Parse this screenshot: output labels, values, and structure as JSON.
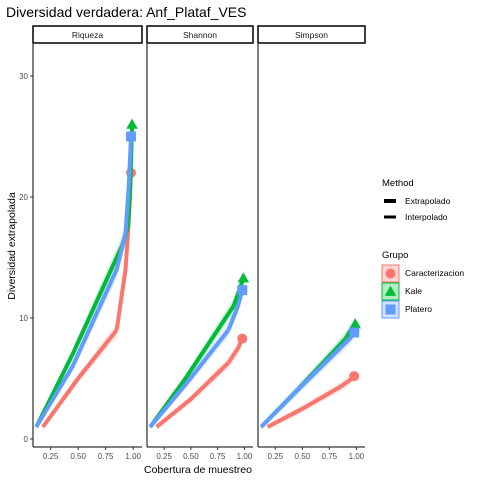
{
  "chart_data": {
    "type": "line",
    "title": "Diversidad verdadera: Anf_Plataf_VES",
    "xlabel": "Cobertura de muestreo",
    "ylabel": "Diversidad extrapolada",
    "ylim": [
      0,
      30
    ],
    "y_ticks": [
      0,
      10,
      20,
      30
    ],
    "x_ticks": [
      0.25,
      0.5,
      0.75,
      1.0
    ],
    "x_tick_labels": [
      "0.25",
      "0.50",
      "0.75",
      "1.00"
    ],
    "grid": false,
    "facets": [
      {
        "name": "Riqueza",
        "xlim": [
          0.09,
          1.08
        ],
        "series": [
          {
            "name": "Caracterizacion",
            "color": "#F8766D",
            "shape": "circle",
            "interpolado": [
              [
                0.18,
                1
              ],
              [
                0.5,
                5
              ],
              [
                0.85,
                9
              ]
            ],
            "extrapolado": [
              [
                0.85,
                9
              ],
              [
                0.93,
                14
              ],
              [
                0.96,
                18
              ],
              [
                0.98,
                22
              ]
            ],
            "observed": [
              0.98,
              22
            ]
          },
          {
            "name": "Kale",
            "color": "#00BA38",
            "shape": "triangle",
            "interpolado": [
              [
                0.12,
                1
              ],
              [
                0.45,
                7
              ],
              [
                0.9,
                16
              ]
            ],
            "extrapolado": [
              [
                0.9,
                16
              ],
              [
                0.95,
                17.5
              ],
              [
                0.97,
                20
              ],
              [
                0.99,
                26
              ]
            ],
            "observed": [
              0.99,
              26
            ]
          },
          {
            "name": "Platero",
            "color": "#619CFF",
            "shape": "square",
            "interpolado": [
              [
                0.12,
                1
              ],
              [
                0.45,
                6
              ],
              [
                0.85,
                14
              ]
            ],
            "extrapolado": [
              [
                0.85,
                14
              ],
              [
                0.93,
                17
              ],
              [
                0.96,
                21
              ],
              [
                0.98,
                25
              ]
            ],
            "observed": [
              0.98,
              25
            ]
          }
        ]
      },
      {
        "name": "Shannon",
        "xlim": [
          0.09,
          1.08
        ],
        "series": [
          {
            "name": "Caracterizacion",
            "color": "#F8766D",
            "shape": "circle",
            "interpolado": [
              [
                0.18,
                1
              ],
              [
                0.5,
                3.3
              ],
              [
                0.85,
                6.3
              ]
            ],
            "extrapolado": [
              [
                0.85,
                6.3
              ],
              [
                0.94,
                7.5
              ],
              [
                0.98,
                8.3
              ]
            ],
            "observed": [
              0.98,
              8.3
            ]
          },
          {
            "name": "Kale",
            "color": "#00BA38",
            "shape": "triangle",
            "interpolado": [
              [
                0.12,
                1
              ],
              [
                0.45,
                5
              ],
              [
                0.9,
                11
              ]
            ],
            "extrapolado": [
              [
                0.9,
                11
              ],
              [
                0.96,
                12.5
              ],
              [
                0.99,
                13.3
              ]
            ],
            "observed": [
              0.99,
              13.3
            ]
          },
          {
            "name": "Platero",
            "color": "#619CFF",
            "shape": "square",
            "interpolado": [
              [
                0.12,
                1
              ],
              [
                0.45,
                4.5
              ],
              [
                0.85,
                9
              ]
            ],
            "extrapolado": [
              [
                0.85,
                9
              ],
              [
                0.94,
                11
              ],
              [
                0.98,
                12.3
              ]
            ],
            "observed": [
              0.98,
              12.3
            ]
          }
        ]
      },
      {
        "name": "Simpson",
        "xlim": [
          0.09,
          1.08
        ],
        "series": [
          {
            "name": "Caracterizacion",
            "color": "#F8766D",
            "shape": "circle",
            "interpolado": [
              [
                0.18,
                1
              ],
              [
                0.5,
                2.5
              ],
              [
                0.85,
                4.3
              ]
            ],
            "extrapolado": [
              [
                0.85,
                4.3
              ],
              [
                0.93,
                4.8
              ],
              [
                0.98,
                5.2
              ]
            ],
            "observed": [
              0.98,
              5.2
            ]
          },
          {
            "name": "Kale",
            "color": "#00BA38",
            "shape": "triangle",
            "interpolado": [
              [
                0.12,
                1
              ],
              [
                0.45,
                4
              ],
              [
                0.9,
                8.3
              ]
            ],
            "extrapolado": [
              [
                0.9,
                8.3
              ],
              [
                0.95,
                9
              ],
              [
                0.99,
                9.5
              ]
            ],
            "observed": [
              0.99,
              9.5
            ]
          },
          {
            "name": "Platero",
            "color": "#619CFF",
            "shape": "square",
            "interpolado": [
              [
                0.12,
                1
              ],
              [
                0.45,
                4
              ],
              [
                0.85,
                7.5
              ]
            ],
            "extrapolado": [
              [
                0.85,
                7.5
              ],
              [
                0.94,
                8.3
              ],
              [
                0.98,
                8.8
              ]
            ],
            "observed": [
              0.98,
              8.8
            ]
          }
        ]
      }
    ],
    "legend": {
      "placement": "right",
      "method_title": "Method",
      "method_entries": [
        "Extrapolado",
        "Interpolado"
      ],
      "group_title": "Grupo",
      "group_entries": [
        {
          "name": "Caracterizacion",
          "color": "#F8766D",
          "shape": "circle"
        },
        {
          "name": "Kale",
          "color": "#00BA38",
          "shape": "triangle"
        },
        {
          "name": "Platero",
          "color": "#619CFF",
          "shape": "square"
        }
      ]
    }
  }
}
